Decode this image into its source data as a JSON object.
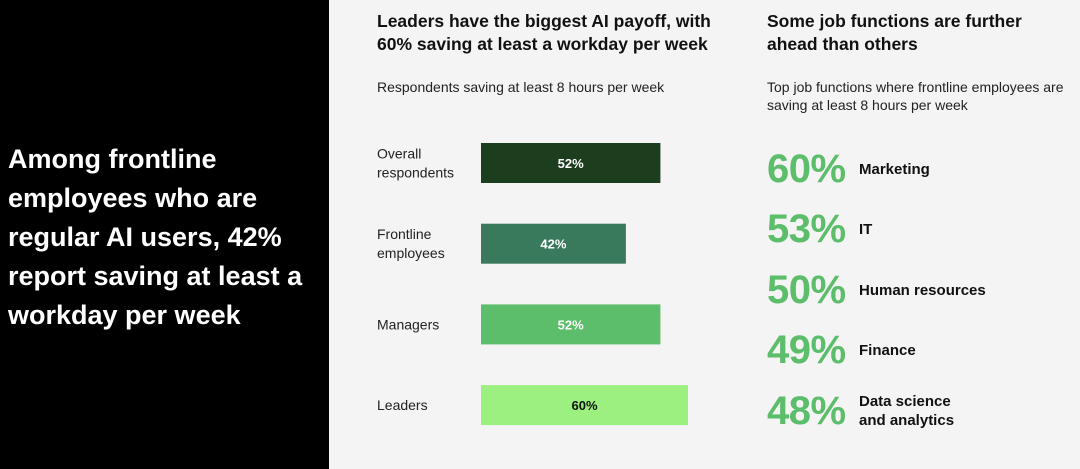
{
  "headline": "Among frontline employees who are regular AI users, 42% report saving at least a workday per week",
  "bar_section": {
    "title": "Leaders have the biggest AI payoff, with 60% saving at least a workday per week",
    "subtitle": "Respondents saving at least 8 hours per week"
  },
  "functions_section": {
    "title": "Some job functions are further ahead than others",
    "subtitle": "Top job functions where frontline employees are saving at least 8 hours per week",
    "items": [
      {
        "pct": "60%",
        "label": "Marketing"
      },
      {
        "pct": "53%",
        "label": "IT"
      },
      {
        "pct": "50%",
        "label": "Human resources"
      },
      {
        "pct": "49%",
        "label": "Finance"
      },
      {
        "pct": "48%",
        "label": "Data science and analytics"
      }
    ],
    "pct_color": "#5cbd6a"
  },
  "chart_data": {
    "type": "bar",
    "orientation": "horizontal",
    "categories": [
      "Overall respondents",
      "Frontline employees",
      "Managers",
      "Leaders"
    ],
    "values": [
      52,
      42,
      52,
      60
    ],
    "value_labels": [
      "52%",
      "42%",
      "52%",
      "60%"
    ],
    "bar_colors": [
      "#1c3d1e",
      "#3a7a5c",
      "#5cbd6a",
      "#9cf07f"
    ],
    "label_colors": [
      "#ffffff",
      "#ffffff",
      "#ffffff",
      "#111111"
    ],
    "title": "Leaders have the biggest AI payoff, with 60% saving at least a workday per week",
    "subtitle": "Respondents saving at least 8 hours per week",
    "xlim": [
      0,
      100
    ],
    "grid": false,
    "legend": "none"
  }
}
